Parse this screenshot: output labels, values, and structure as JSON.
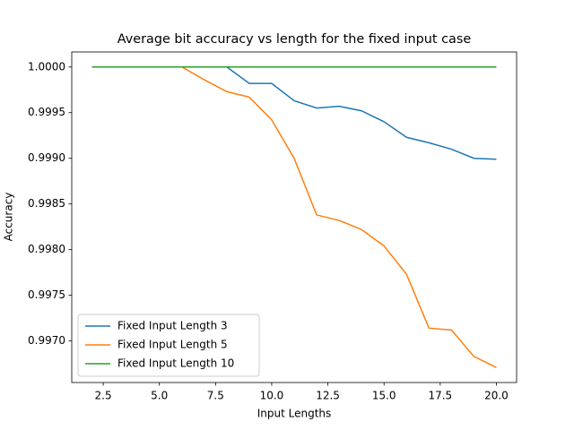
{
  "chart_data": {
    "type": "line",
    "title": "Average bit accuracy vs length for the fixed input case",
    "x_label": "Input Lengths",
    "y_label": "Accuracy",
    "x": [
      2,
      3,
      4,
      5,
      6,
      7,
      8,
      9,
      10,
      11,
      12,
      13,
      14,
      15,
      16,
      17,
      18,
      19,
      20
    ],
    "series": [
      {
        "name": "Fixed Input Length 3",
        "color": "#1f77b4",
        "values": [
          1.0,
          1.0,
          1.0,
          1.0,
          1.0,
          1.0,
          1.0,
          0.99982,
          0.99982,
          0.99963,
          0.99955,
          0.99957,
          0.99952,
          0.9994,
          0.99923,
          0.99917,
          0.9991,
          0.999,
          0.99899
        ]
      },
      {
        "name": "Fixed Input Length 5",
        "color": "#ff7f0e",
        "values": [
          1.0,
          1.0,
          1.0,
          1.0,
          1.0,
          0.99986,
          0.99973,
          0.99967,
          0.99942,
          0.999,
          0.99838,
          0.99832,
          0.99822,
          0.99804,
          0.99773,
          0.99714,
          0.99712,
          0.99683,
          0.99671
        ]
      },
      {
        "name": "Fixed Input Length 10",
        "color": "#2ca02c",
        "values": [
          1.0,
          1.0,
          1.0,
          1.0,
          1.0,
          1.0,
          1.0,
          1.0,
          1.0,
          1.0,
          1.0,
          1.0,
          1.0,
          1.0,
          1.0,
          1.0,
          1.0,
          1.0,
          1.0
        ]
      }
    ],
    "xlim": [
      1.1,
      20.9
    ],
    "xticks": [
      2.5,
      {
        "value": 5,
        "label": "5.0"
      },
      7.5,
      {
        "value": 10,
        "label": "10.0"
      },
      12.5,
      {
        "value": 15,
        "label": "15.0"
      },
      17.5,
      {
        "value": 20,
        "label": "20.0"
      }
    ],
    "ylim": [
      0.996545,
      1.0001645
    ],
    "yticks": [
      {
        "value": 0.997,
        "label": "0.9970"
      },
      {
        "value": 0.9975,
        "label": "0.9975"
      },
      {
        "value": 0.998,
        "label": "0.9980"
      },
      {
        "value": 0.9985,
        "label": "0.9985"
      },
      {
        "value": 0.999,
        "label": "0.9990"
      },
      {
        "value": 0.9995,
        "label": "0.9995"
      },
      {
        "value": 1.0,
        "label": "1.0000"
      }
    ],
    "legend": "lower left"
  }
}
